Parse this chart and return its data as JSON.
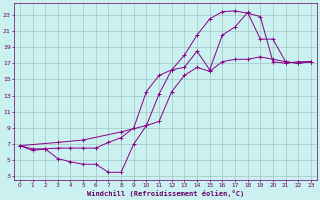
{
  "background_color": "#caf0f0",
  "grid_color": "#99bbbb",
  "line_color": "#880088",
  "xlabel": "Windchill (Refroidissement éolien,°C)",
  "xlim": [
    -0.5,
    23.5
  ],
  "ylim": [
    2.5,
    24.5
  ],
  "xticks": [
    0,
    1,
    2,
    3,
    4,
    5,
    6,
    7,
    8,
    9,
    10,
    11,
    12,
    13,
    14,
    15,
    16,
    17,
    18,
    19,
    20,
    21,
    22,
    23
  ],
  "yticks": [
    3,
    5,
    7,
    9,
    11,
    13,
    15,
    17,
    19,
    21,
    23
  ],
  "curve1_x": [
    0,
    1,
    2,
    3,
    4,
    5,
    6,
    7,
    8,
    9,
    10,
    11,
    12,
    13,
    14,
    15,
    16,
    17,
    18,
    19,
    20,
    21,
    22,
    23
  ],
  "curve1_y": [
    6.8,
    6.4,
    6.4,
    6.5,
    6.5,
    6.5,
    6.5,
    7.2,
    7.8,
    9.0,
    13.5,
    15.5,
    16.2,
    18.0,
    20.5,
    22.5,
    23.4,
    23.5,
    23.2,
    22.8,
    17.2,
    17.0,
    17.2,
    17.2
  ],
  "curve2_x": [
    0,
    1,
    2,
    3,
    4,
    5,
    6,
    7,
    8,
    9,
    10,
    11,
    12,
    13,
    14,
    15,
    16,
    17,
    18,
    19,
    20,
    21,
    22,
    23
  ],
  "curve2_y": [
    6.8,
    6.2,
    6.4,
    5.2,
    4.8,
    4.5,
    4.5,
    3.5,
    3.5,
    7.0,
    9.3,
    13.2,
    16.2,
    16.5,
    18.5,
    16.2,
    20.5,
    21.5,
    23.3,
    20.0,
    20.0,
    17.2,
    17.0,
    17.2
  ],
  "curve3_x": [
    0,
    3,
    5,
    8,
    10,
    11,
    12,
    13,
    14,
    15,
    16,
    17,
    18,
    19,
    20,
    21,
    22,
    23
  ],
  "curve3_y": [
    6.8,
    7.2,
    7.5,
    8.5,
    9.3,
    9.8,
    13.5,
    15.5,
    16.5,
    16.0,
    17.2,
    17.5,
    17.5,
    17.8,
    17.5,
    17.2,
    17.0,
    17.2
  ]
}
